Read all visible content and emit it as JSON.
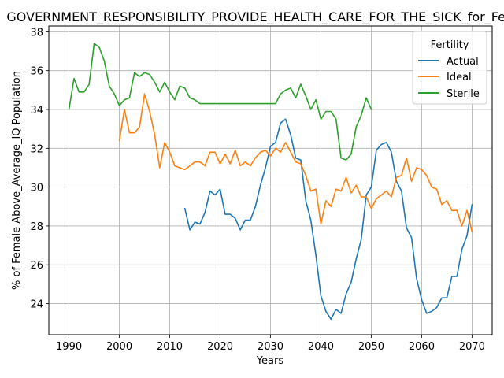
{
  "chart_data": {
    "type": "line",
    "title": "GOVERNMENT_RESPONSIBILITY_PROVIDE_HEALTH_CARE_FOR_THE_SICK_for_Female",
    "xlabel": "Years",
    "ylabel": "% of Female Above_Average_IQ Population",
    "xlim": [
      1986,
      2074
    ],
    "ylim": [
      22.4,
      38.3
    ],
    "x_ticks": [
      1990,
      2000,
      2010,
      2020,
      2030,
      2040,
      2050,
      2060,
      2070
    ],
    "y_ticks": [
      24,
      26,
      28,
      30,
      32,
      34,
      36,
      38
    ],
    "grid": true,
    "legend": {
      "title": "Fertility",
      "position": "top-right"
    },
    "series": [
      {
        "name": "Actual",
        "color": "#1f77b4",
        "x": [
          2013,
          2014,
          2015,
          2016,
          2017,
          2018,
          2019,
          2020,
          2021,
          2022,
          2023,
          2024,
          2025,
          2026,
          2027,
          2028,
          2029,
          2030,
          2031,
          2032,
          2033,
          2034,
          2035,
          2036,
          2037,
          2038,
          2039,
          2040,
          2041,
          2042,
          2043,
          2044,
          2045,
          2046,
          2047,
          2048,
          2049,
          2050,
          2051,
          2052,
          2053,
          2054,
          2055,
          2056,
          2057,
          2058,
          2059,
          2060,
          2061,
          2062,
          2063,
          2064,
          2065,
          2066,
          2067,
          2068,
          2069,
          2070
        ],
        "values": [
          28.9,
          27.8,
          28.2,
          28.1,
          28.7,
          29.8,
          29.6,
          29.9,
          28.6,
          28.6,
          28.4,
          27.8,
          28.3,
          28.3,
          29.0,
          30.1,
          31.0,
          32.1,
          32.3,
          33.3,
          33.5,
          32.7,
          31.5,
          31.4,
          29.3,
          28.3,
          26.5,
          24.4,
          23.6,
          23.2,
          23.7,
          23.5,
          24.5,
          25.1,
          26.3,
          27.3,
          29.6,
          30.0,
          31.9,
          32.2,
          32.3,
          31.8,
          30.3,
          29.8,
          27.9,
          27.4,
          25.3,
          24.2,
          23.5,
          23.6,
          23.8,
          24.3,
          24.3,
          25.4,
          25.4,
          26.8,
          27.5,
          29.1
        ]
      },
      {
        "name": "Ideal",
        "color": "#ff7f0e",
        "x": [
          2000,
          2001,
          2002,
          2003,
          2004,
          2005,
          2006,
          2007,
          2008,
          2009,
          2010,
          2011,
          2012,
          2013,
          2014,
          2015,
          2016,
          2017,
          2018,
          2019,
          2020,
          2021,
          2022,
          2023,
          2024,
          2025,
          2026,
          2027,
          2028,
          2029,
          2030,
          2031,
          2032,
          2033,
          2034,
          2035,
          2036,
          2037,
          2038,
          2039,
          2040,
          2041,
          2042,
          2043,
          2044,
          2045,
          2046,
          2047,
          2048,
          2049,
          2050,
          2051,
          2052,
          2053,
          2054,
          2055,
          2056,
          2057,
          2058,
          2059,
          2060,
          2061,
          2062,
          2063,
          2064,
          2065,
          2066,
          2067,
          2068,
          2069,
          2070
        ],
        "values": [
          32.4,
          34.0,
          32.8,
          32.8,
          33.1,
          34.8,
          33.9,
          32.7,
          31.0,
          32.3,
          31.8,
          31.1,
          31.0,
          30.9,
          31.1,
          31.3,
          31.3,
          31.1,
          31.8,
          31.8,
          31.2,
          31.7,
          31.2,
          31.9,
          31.1,
          31.3,
          31.1,
          31.5,
          31.8,
          31.9,
          31.6,
          32.0,
          31.8,
          32.3,
          31.8,
          31.3,
          31.2,
          30.6,
          29.8,
          29.9,
          28.1,
          29.3,
          29.0,
          29.9,
          29.8,
          30.5,
          29.7,
          30.1,
          29.5,
          29.5,
          28.9,
          29.4,
          29.6,
          29.8,
          29.5,
          30.5,
          30.6,
          31.5,
          30.3,
          31.0,
          30.9,
          30.6,
          30.0,
          29.9,
          29.1,
          29.3,
          28.8,
          28.8,
          28.0,
          28.8,
          27.7
        ]
      },
      {
        "name": "Sterile",
        "color": "#2ca02c",
        "x": [
          1990,
          1991,
          1992,
          1993,
          1994,
          1995,
          1996,
          1997,
          1998,
          1999,
          2000,
          2001,
          2002,
          2003,
          2004,
          2005,
          2006,
          2007,
          2008,
          2009,
          2010,
          2011,
          2012,
          2013,
          2014,
          2015,
          2016,
          2017,
          2018,
          2019,
          2020,
          2021,
          2022,
          2023,
          2024,
          2025,
          2026,
          2027,
          2028,
          2029,
          2030,
          2031,
          2032,
          2033,
          2034,
          2035,
          2036,
          2037,
          2038,
          2039,
          2040,
          2041,
          2042,
          2043,
          2044,
          2045,
          2046,
          2047,
          2048,
          2049,
          2050
        ],
        "values": [
          34.0,
          35.6,
          34.9,
          34.9,
          35.3,
          37.4,
          37.2,
          36.5,
          35.2,
          34.8,
          34.2,
          34.5,
          34.6,
          35.9,
          35.7,
          35.9,
          35.8,
          35.4,
          34.9,
          35.4,
          34.9,
          34.5,
          35.2,
          35.1,
          34.6,
          34.5,
          34.3,
          34.3,
          34.3,
          34.3,
          34.3,
          34.3,
          34.3,
          34.3,
          34.3,
          34.3,
          34.3,
          34.3,
          34.3,
          34.3,
          34.3,
          34.3,
          34.8,
          35.0,
          35.1,
          34.6,
          35.3,
          34.7,
          34.0,
          34.5,
          33.5,
          33.9,
          33.9,
          33.5,
          31.5,
          31.4,
          31.7,
          33.1,
          33.7,
          34.6,
          34.0
        ]
      }
    ]
  }
}
